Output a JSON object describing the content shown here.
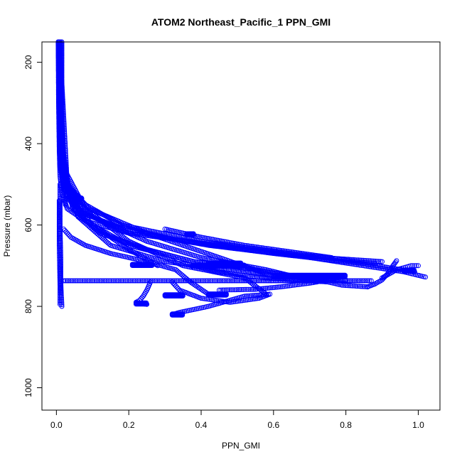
{
  "chart_data": {
    "type": "scatter",
    "title": "ATOM2 Northeast_Pacific_1 PPN_GMI",
    "xlabel": "PPN_GMI",
    "ylabel": "Pressure (mbar)",
    "xlim": [
      -0.04,
      1.06
    ],
    "ylim": [
      1055,
      150
    ],
    "y_reversed": true,
    "grid": false,
    "marker": "open-circle",
    "color": "#0000ff",
    "x_ticks": [
      0.0,
      0.2,
      0.4,
      0.6,
      0.8,
      1.0
    ],
    "x_tick_labels": [
      "0.0",
      "0.2",
      "0.4",
      "0.6",
      "0.8",
      "1.0"
    ],
    "y_ticks": [
      200,
      400,
      600,
      800,
      1000
    ],
    "y_tick_labels": [
      "200",
      "400",
      "600",
      "800",
      "1000"
    ],
    "profiles": [
      {
        "x": [
          0.005,
          0.006,
          0.008,
          0.01,
          0.015,
          0.03,
          0.08,
          0.2,
          0.45,
          0.7,
          0.96,
          1.02
        ],
        "y": [
          150,
          300,
          420,
          480,
          520,
          560,
          590,
          620,
          650,
          680,
          715,
          728
        ]
      },
      {
        "x": [
          0.005,
          0.007,
          0.01,
          0.02,
          0.05,
          0.15,
          0.35,
          0.6,
          0.85,
          0.99
        ],
        "y": [
          150,
          320,
          450,
          510,
          560,
          600,
          640,
          670,
          695,
          715
        ]
      },
      {
        "x": [
          0.006,
          0.008,
          0.012,
          0.025,
          0.07,
          0.2,
          0.42,
          0.65,
          0.9
        ],
        "y": [
          150,
          330,
          460,
          520,
          570,
          615,
          650,
          675,
          690
        ]
      },
      {
        "x": [
          0.006,
          0.01,
          0.02,
          0.06,
          0.18,
          0.4,
          0.65,
          0.88
        ],
        "y": [
          150,
          340,
          480,
          540,
          600,
          640,
          670,
          695
        ]
      },
      {
        "x": [
          0.007,
          0.01,
          0.03,
          0.09,
          0.25,
          0.45,
          0.58
        ],
        "y": [
          150,
          360,
          500,
          560,
          620,
          680,
          720
        ]
      },
      {
        "x": [
          0.007,
          0.012,
          0.035,
          0.1,
          0.25,
          0.4,
          0.58,
          0.72
        ],
        "y": [
          150,
          380,
          520,
          580,
          640,
          680,
          710,
          740
        ]
      },
      {
        "x": [
          0.008,
          0.015,
          0.04,
          0.1,
          0.2,
          0.28
        ],
        "y": [
          150,
          400,
          540,
          600,
          660,
          700
        ]
      },
      {
        "x": [
          0.008,
          0.015,
          0.045,
          0.12,
          0.25,
          0.38,
          0.48
        ],
        "y": [
          150,
          420,
          560,
          620,
          660,
          690,
          700
        ]
      },
      {
        "x": [
          0.008,
          0.02,
          0.08,
          0.2,
          0.35,
          0.52,
          0.58
        ],
        "y": [
          150,
          460,
          560,
          640,
          700,
          730,
          770
        ]
      },
      {
        "x": [
          0.009,
          0.02,
          0.06,
          0.15,
          0.3,
          0.48,
          0.6
        ],
        "y": [
          150,
          470,
          580,
          650,
          690,
          710,
          725
        ]
      },
      {
        "x": [
          0.009,
          0.03,
          0.08,
          0.2,
          0.38,
          0.55,
          0.68,
          0.8
        ],
        "y": [
          150,
          500,
          590,
          650,
          690,
          710,
          730,
          735
        ]
      },
      {
        "x": [
          0.012,
          0.012,
          0.02,
          0.05,
          0.06,
          0.07
        ],
        "y": [
          150,
          430,
          500,
          520,
          530,
          535
        ]
      },
      {
        "x": [
          0.015,
          0.015,
          0.02,
          0.025,
          0.025
        ],
        "y": [
          150,
          300,
          450,
          500,
          550
        ]
      },
      {
        "x": [
          0.01,
          0.01,
          0.012,
          0.012,
          0.015
        ],
        "y": [
          500,
          600,
          680,
          740,
          800
        ]
      },
      {
        "x": [
          0.008,
          0.008,
          0.01,
          0.01
        ],
        "y": [
          540,
          650,
          750,
          795
        ]
      },
      {
        "x": [
          0.02,
          0.2,
          0.45,
          0.6,
          0.72,
          0.8,
          0.87
        ],
        "y": [
          737,
          737,
          737,
          737,
          737,
          737,
          737
        ]
      },
      {
        "x": [
          0.02,
          0.04,
          0.08,
          0.15,
          0.25,
          0.33,
          0.37,
          0.42
        ],
        "y": [
          610,
          630,
          650,
          670,
          690,
          710,
          740,
          770
        ]
      },
      {
        "x": [
          0.26,
          0.25,
          0.24,
          0.23,
          0.22,
          0.23,
          0.25
        ],
        "y": [
          740,
          760,
          775,
          785,
          790,
          793,
          795
        ]
      },
      {
        "x": [
          0.32,
          0.34,
          0.4,
          0.48,
          0.56,
          0.59,
          0.52,
          0.42,
          0.34,
          0.32
        ],
        "y": [
          740,
          760,
          780,
          790,
          780,
          770,
          775,
          800,
          815,
          820
        ]
      },
      {
        "x": [
          0.38,
          0.43,
          0.5,
          0.58,
          0.66,
          0.75,
          0.79,
          0.86
        ],
        "y": [
          700,
          712,
          722,
          730,
          735,
          740,
          748,
          752
        ]
      },
      {
        "x": [
          0.86,
          0.88,
          0.9,
          0.91,
          0.92,
          0.93,
          0.94
        ],
        "y": [
          752,
          745,
          735,
          725,
          715,
          700,
          688
        ]
      },
      {
        "x": [
          0.45,
          0.55,
          0.62,
          0.7,
          0.75,
          0.79
        ],
        "y": [
          760,
          758,
          752,
          743,
          735,
          727
        ]
      },
      {
        "x": [
          0.9,
          0.92,
          0.94,
          0.96,
          0.98,
          1.0
        ],
        "y": [
          730,
          720,
          710,
          705,
          700,
          700
        ]
      },
      {
        "x": [
          0.3,
          0.4,
          0.52,
          0.64,
          0.76
        ],
        "y": [
          610,
          630,
          650,
          665,
          680
        ]
      }
    ],
    "clusters": [
      {
        "x0": 0.055,
        "x1": 0.07,
        "y": 535
      },
      {
        "x0": 0.36,
        "x1": 0.38,
        "y": 623
      },
      {
        "x0": 0.21,
        "x1": 0.265,
        "y": 698
      },
      {
        "x0": 0.375,
        "x1": 0.52,
        "y": 700
      },
      {
        "x0": 0.42,
        "x1": 0.51,
        "y": 695
      },
      {
        "x0": 0.6,
        "x1": 0.8,
        "y": 725
      },
      {
        "x0": 0.96,
        "x1": 0.99,
        "y": 712
      },
      {
        "x0": 0.3,
        "x1": 0.35,
        "y": 773
      },
      {
        "x0": 0.42,
        "x1": 0.47,
        "y": 771
      },
      {
        "x0": 0.22,
        "x1": 0.25,
        "y": 793
      },
      {
        "x0": 0.32,
        "x1": 0.35,
        "y": 820
      }
    ]
  }
}
